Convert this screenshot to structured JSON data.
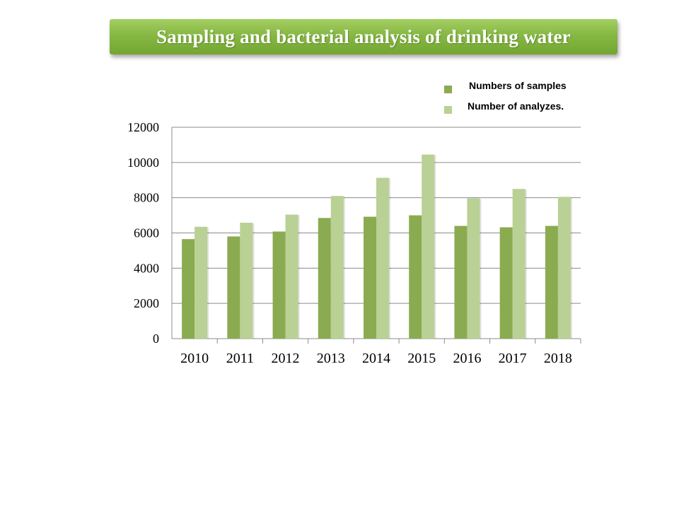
{
  "title": "Sampling and bacterial analysis of drinking water",
  "colors": {
    "banner": "#86b843",
    "series_dark": "#8aab4f",
    "series_light": "#b9d194",
    "grid": "#8c8c8c"
  },
  "legend": [
    {
      "label": "Numbers of samples",
      "color": "#8aab4f"
    },
    {
      "label": "Number of analyzes.",
      "color": "#b9d194"
    }
  ],
  "chart_data": {
    "type": "bar",
    "categories": [
      "2010",
      "2011",
      "2012",
      "2013",
      "2014",
      "2015",
      "2016",
      "2017",
      "2018"
    ],
    "series": [
      {
        "name": "Numbers of samples",
        "values": [
          5650,
          5800,
          6080,
          6850,
          6920,
          7000,
          6400,
          6320,
          6400
        ]
      },
      {
        "name": "Number of analyzes.",
        "values": [
          6350,
          6580,
          7040,
          8100,
          9130,
          10450,
          7970,
          8500,
          8050
        ]
      }
    ],
    "ylim": [
      0,
      12000
    ],
    "yticks": [
      "0",
      "2000",
      "4000",
      "6000",
      "8000",
      "10000",
      "12000"
    ],
    "grid": true,
    "legend_position": "top-right"
  }
}
